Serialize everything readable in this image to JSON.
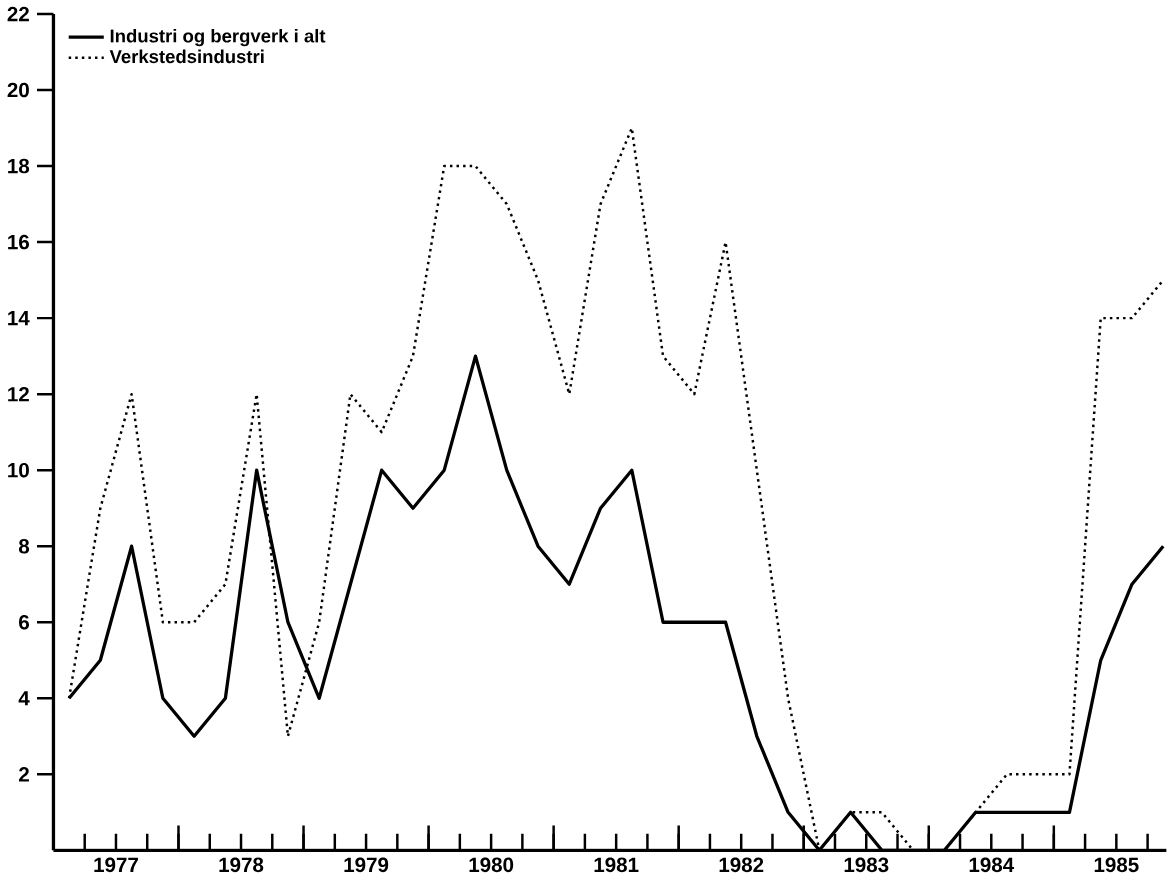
{
  "chart_data": {
    "type": "line",
    "x": [
      1977.125,
      1977.375,
      1977.625,
      1977.875,
      1978.125,
      1978.375,
      1978.625,
      1978.875,
      1979.125,
      1979.375,
      1979.625,
      1979.875,
      1980.125,
      1980.375,
      1980.625,
      1980.875,
      1981.125,
      1981.375,
      1981.625,
      1981.875,
      1982.125,
      1982.375,
      1982.625,
      1982.875,
      1983.125,
      1983.375,
      1983.625,
      1983.875,
      1984.125,
      1984.375,
      1984.625,
      1984.875,
      1985.125,
      1985.375,
      1985.625,
      1985.875
    ],
    "series": [
      {
        "name": "Industri og bergverk i alt",
        "color": "#000000",
        "line_style": "solid",
        "values": [
          4,
          5,
          8,
          4,
          3,
          4,
          10,
          6,
          4,
          7,
          10,
          9,
          10,
          13,
          10,
          8,
          7,
          9,
          10,
          6,
          6,
          6,
          3,
          1,
          0,
          1,
          0,
          0,
          0,
          1,
          1,
          1,
          1,
          5,
          7,
          8
        ]
      },
      {
        "name": "Verkstedsindustri",
        "color": "#000000",
        "line_style": "dotted",
        "values": [
          4,
          9,
          12,
          6,
          6,
          7,
          12,
          3,
          6,
          12,
          11,
          13,
          18,
          18,
          17,
          15,
          12,
          17,
          19,
          13,
          12,
          16,
          10,
          4,
          0,
          1,
          1,
          0,
          0,
          1,
          2,
          2,
          2,
          14,
          14,
          15
        ]
      }
    ],
    "xlim": [
      1977,
      1985.9
    ],
    "xticks": [
      {
        "value": 1977.25,
        "label": null
      },
      {
        "value": 1977.5,
        "label": "1977"
      },
      {
        "value": 1977.75,
        "label": null
      },
      {
        "value": 1978,
        "label": null
      },
      {
        "value": 1978.25,
        "label": null
      },
      {
        "value": 1978.5,
        "label": "1978"
      },
      {
        "value": 1978.75,
        "label": null
      },
      {
        "value": 1979,
        "label": null
      },
      {
        "value": 1979.25,
        "label": null
      },
      {
        "value": 1979.5,
        "label": "1979"
      },
      {
        "value": 1979.75,
        "label": null
      },
      {
        "value": 1980,
        "label": null
      },
      {
        "value": 1980.25,
        "label": null
      },
      {
        "value": 1980.5,
        "label": "1980"
      },
      {
        "value": 1980.75,
        "label": null
      },
      {
        "value": 1981,
        "label": null
      },
      {
        "value": 1981.25,
        "label": null
      },
      {
        "value": 1981.5,
        "label": "1981"
      },
      {
        "value": 1981.75,
        "label": null
      },
      {
        "value": 1982,
        "label": null
      },
      {
        "value": 1982.25,
        "label": null
      },
      {
        "value": 1982.5,
        "label": "1982"
      },
      {
        "value": 1982.75,
        "label": null
      },
      {
        "value": 1983,
        "label": null
      },
      {
        "value": 1983.25,
        "label": null
      },
      {
        "value": 1983.5,
        "label": "1983"
      },
      {
        "value": 1983.75,
        "label": null
      },
      {
        "value": 1984,
        "label": null
      },
      {
        "value": 1984.25,
        "label": null
      },
      {
        "value": 1984.5,
        "label": "1984"
      },
      {
        "value": 1984.75,
        "label": null
      },
      {
        "value": 1985,
        "label": null
      },
      {
        "value": 1985.25,
        "label": null
      },
      {
        "value": 1985.5,
        "label": "1985"
      },
      {
        "value": 1985.75,
        "label": null
      }
    ],
    "ylim": [
      0,
      22
    ],
    "yticks": [
      2,
      4,
      6,
      8,
      10,
      12,
      14,
      16,
      18,
      20,
      22
    ],
    "grid": false,
    "legend": "top left"
  }
}
